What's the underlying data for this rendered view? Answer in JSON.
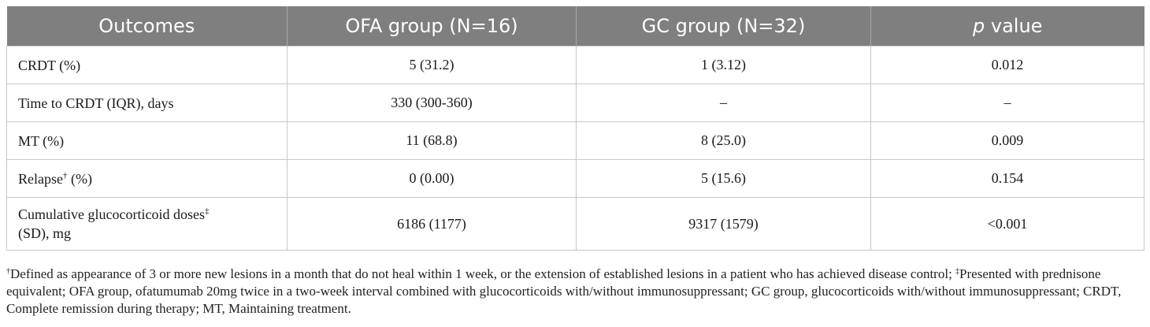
{
  "table": {
    "headers": {
      "outcomes": "Outcomes",
      "ofa": "OFA group (N=16)",
      "gc": "GC group (N=32)",
      "p_italic": "p",
      "p_rest": " value"
    },
    "rows": [
      {
        "label": "CRDT (%)",
        "ofa": "5 (31.2)",
        "gc": "1 (3.12)",
        "p": "0.012"
      },
      {
        "label": "Time to CRDT (IQR), days",
        "ofa": "330 (300-360)",
        "gc": "–",
        "p": "–"
      },
      {
        "label": "MT (%)",
        "ofa": "11 (68.8)",
        "gc": "8 (25.0)",
        "p": "0.009"
      },
      {
        "label_a": "Relapse",
        "label_sup": "†",
        "label_b": " (%)",
        "ofa": "0 (0.00)",
        "gc": "5 (15.6)",
        "p": "0.154"
      },
      {
        "label_line1": "Cumulative glucocorticoid doses",
        "label_sup": "‡",
        "label_line2": "(SD), mg",
        "ofa": "6186 (1177)",
        "gc": "9317 (1579)",
        "p": "<0.001"
      }
    ]
  },
  "footnote": {
    "sup1": "†",
    "text1": "Defined as appearance of 3 or more new lesions in a month that do not heal within 1 week, or the extension of established lesions in a patient who has achieved disease control; ",
    "sup2": "‡",
    "text2": "Presented with prednisone equivalent; OFA group, ofatumumab 20mg twice in a two-week interval combined with glucocorticoids with/without immunosuppressant; GC group, glucocorticoids with/without immunosuppressant; CRDT, Complete remission during therapy; MT, Maintaining treatment."
  }
}
